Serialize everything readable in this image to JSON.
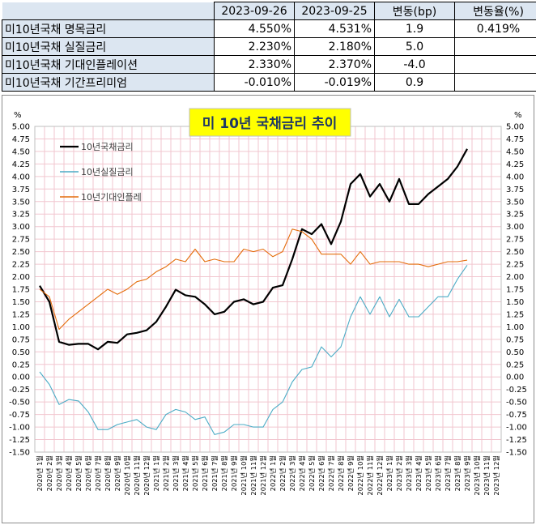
{
  "table": {
    "headers": [
      "",
      "2023-09-26",
      "2023-09-25",
      "변동(bp)",
      "변동율(%)"
    ],
    "rows": [
      [
        "미10년국채 명목금리",
        "4.550%",
        "4.531%",
        "1.9",
        "0.419%"
      ],
      [
        "미10년국채 실질금리",
        "2.230%",
        "2.180%",
        "5.0",
        ""
      ],
      [
        "미10년국채 기대인플레이션",
        "2.330%",
        "2.370%",
        "-4.0",
        ""
      ],
      [
        "미10년국채 기간프리미엄",
        "-0.010%",
        "-0.019%",
        "0.9",
        ""
      ]
    ]
  },
  "chart_data": {
    "type": "line",
    "title": "미 10년  국채금리  추이",
    "ylabel_left": "%",
    "ylabel_right": "%",
    "ylim": [
      -1.5,
      5.0
    ],
    "yticks": [
      "5.00",
      "4.75",
      "4.50",
      "4.25",
      "4.00",
      "3.75",
      "3.50",
      "3.25",
      "3.00",
      "2.75",
      "2.50",
      "2.25",
      "2.00",
      "1.75",
      "1.50",
      "1.25",
      "1.00",
      "0.75",
      "0.50",
      "0.25",
      "0.00",
      "-0.25",
      "-0.50",
      "-0.75",
      "-1.00",
      "-1.25",
      "-1.50"
    ],
    "grid": true,
    "legend_position": "top-left",
    "x_categories": [
      "2020년 1월",
      "2020년 2월",
      "2020년 3월",
      "2020년 4월",
      "2020년 5월",
      "2020년 6월",
      "2020년 7월",
      "2020년 8월",
      "2020년 9월",
      "2020년 10월",
      "2020년 11월",
      "2020년 12월",
      "2021년 1월",
      "2021년 2월",
      "2021년 3월",
      "2021년 4월",
      "2021년 5월",
      "2021년 6월",
      "2021년 7월",
      "2021년 8월",
      "2021년 9월",
      "2021년 10월",
      "2021년 11월",
      "2021년 12월",
      "2022년 1월",
      "2022년 2월",
      "2022년 3월",
      "2022년 4월",
      "2022년 5월",
      "2022년 6월",
      "2022년 7월",
      "2022년 8월",
      "2022년 9월",
      "2022년 10월",
      "2022년 11월",
      "2022년 12월",
      "2023년 1월",
      "2023년 2월",
      "2023년 3월",
      "2023년 4월",
      "2023년 5월",
      "2023년 6월",
      "2023년 7월",
      "2023년 8월",
      "2023년 9월",
      "2023년 10월",
      "2023년 11월",
      "2023년 12월"
    ],
    "series": [
      {
        "name": "10년국채금리",
        "color": "#000000",
        "values": [
          1.82,
          1.5,
          0.7,
          0.64,
          0.66,
          0.66,
          0.55,
          0.7,
          0.68,
          0.85,
          0.88,
          0.93,
          1.1,
          1.4,
          1.74,
          1.63,
          1.6,
          1.45,
          1.25,
          1.3,
          1.5,
          1.55,
          1.45,
          1.5,
          1.78,
          1.83,
          2.35,
          2.95,
          2.85,
          3.05,
          2.65,
          3.1,
          3.85,
          4.05,
          3.6,
          3.85,
          3.5,
          3.95,
          3.45,
          3.45,
          3.65,
          3.8,
          3.95,
          4.2,
          4.55,
          null,
          null,
          null
        ]
      },
      {
        "name": "10년실질금리",
        "color": "#4bacc6",
        "values": [
          0.1,
          -0.15,
          -0.55,
          -0.45,
          -0.48,
          -0.7,
          -1.05,
          -1.05,
          -0.95,
          -0.9,
          -0.85,
          -1.0,
          -1.05,
          -0.75,
          -0.65,
          -0.7,
          -0.85,
          -0.8,
          -1.15,
          -1.1,
          -0.95,
          -0.95,
          -1.0,
          -1.0,
          -0.65,
          -0.5,
          -0.1,
          0.15,
          0.2,
          0.6,
          0.4,
          0.6,
          1.2,
          1.6,
          1.25,
          1.6,
          1.2,
          1.55,
          1.2,
          1.2,
          1.4,
          1.6,
          1.6,
          1.95,
          2.23,
          null,
          null,
          null
        ]
      },
      {
        "name": "10년기대인플레",
        "color": "#e46c0a",
        "values": [
          1.75,
          1.6,
          0.95,
          1.15,
          1.3,
          1.45,
          1.6,
          1.75,
          1.65,
          1.75,
          1.9,
          1.95,
          2.1,
          2.2,
          2.35,
          2.3,
          2.55,
          2.3,
          2.35,
          2.3,
          2.3,
          2.55,
          2.5,
          2.55,
          2.4,
          2.5,
          2.95,
          2.9,
          2.75,
          2.45,
          2.45,
          2.45,
          2.25,
          2.5,
          2.25,
          2.3,
          2.3,
          2.3,
          2.25,
          2.25,
          2.2,
          2.25,
          2.3,
          2.3,
          2.33,
          null,
          null,
          null
        ]
      }
    ]
  }
}
